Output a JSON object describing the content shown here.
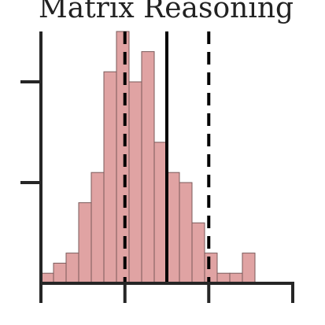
{
  "chart_data": {
    "type": "bar",
    "title": "Matrix Reasoning",
    "xlabel": "",
    "ylabel": "",
    "bin_width": 1,
    "bins": [
      {
        "start": 0,
        "count": 1
      },
      {
        "start": 1,
        "count": 2
      },
      {
        "start": 2,
        "count": 3
      },
      {
        "start": 3,
        "count": 8
      },
      {
        "start": 4,
        "count": 11
      },
      {
        "start": 5,
        "count": 21
      },
      {
        "start": 6,
        "count": 25
      },
      {
        "start": 7,
        "count": 20
      },
      {
        "start": 8,
        "count": 23
      },
      {
        "start": 9,
        "count": 14
      },
      {
        "start": 10,
        "count": 11
      },
      {
        "start": 11,
        "count": 10
      },
      {
        "start": 12,
        "count": 6
      },
      {
        "start": 13,
        "count": 3
      },
      {
        "start": 14,
        "count": 1
      },
      {
        "start": 15,
        "count": 1
      },
      {
        "start": 16,
        "count": 3
      }
    ],
    "xlim": [
      0,
      20
    ],
    "ylim": [
      0,
      25
    ],
    "xticks": [
      0,
      6.67,
      13.33,
      20
    ],
    "yticks": [
      10,
      20
    ],
    "tick_labels_shown": false,
    "mean_line": 10,
    "sd_lines": [
      6.67,
      13.33
    ],
    "bar_fill": "#e0a3a3",
    "bar_edge": "#7a5a5a",
    "line_color": "#000000",
    "axis_color": "#262626",
    "grid": false,
    "legend": "none"
  }
}
